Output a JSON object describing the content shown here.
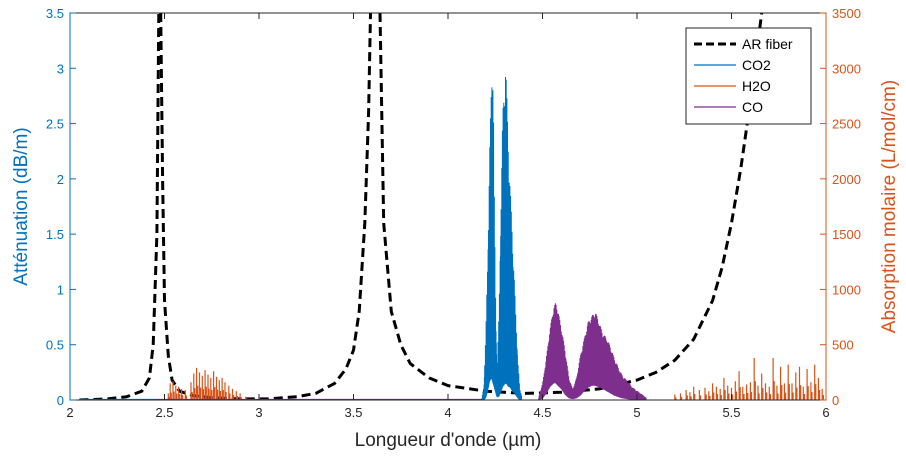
{
  "chart_data": {
    "type": "line",
    "xlabel": "Longueur d'onde (µm)",
    "ylabel_left": "Atténuation (dB/m)",
    "ylabel_right": "Absorption molaire (L/mol/cm)",
    "xlim": [
      2,
      6
    ],
    "ylim_left": [
      0,
      3.5
    ],
    "ylim_right": [
      0,
      3500
    ],
    "x_ticks": [
      2,
      2.5,
      3,
      3.5,
      4,
      4.5,
      5,
      5.5,
      6
    ],
    "x_tick_labels": [
      "2",
      "2.5",
      "3",
      "3.5",
      "4",
      "4.5",
      "5",
      "5.5",
      "6"
    ],
    "y_left_ticks": [
      0,
      0.5,
      1,
      1.5,
      2,
      2.5,
      3,
      3.5
    ],
    "y_left_tick_labels": [
      "0",
      "0.5",
      "1",
      "1.5",
      "2",
      "2.5",
      "3",
      "3.5"
    ],
    "y_right_ticks": [
      0,
      500,
      1000,
      1500,
      2000,
      2500,
      3000,
      3500
    ],
    "y_right_tick_labels": [
      "0",
      "500",
      "1000",
      "1500",
      "2000",
      "2500",
      "3000",
      "3500"
    ],
    "grid": false,
    "legend_position": "top-right",
    "colors": {
      "left_axis": "#0072BD",
      "right_axis": "#D95319",
      "ar_fiber": "#000000",
      "co2": "#0072BD",
      "h2o": "#D95319",
      "co": "#7E2F8E"
    },
    "series": [
      {
        "name": "AR fiber",
        "axis": "left",
        "style": "dashed",
        "segments": [
          {
            "x": [
              2.05,
              2.2,
              2.3,
              2.38,
              2.42,
              2.44,
              2.46,
              2.47
            ],
            "y": [
              0.0,
              0.01,
              0.03,
              0.08,
              0.2,
              0.5,
              1.5,
              3.5
            ]
          },
          {
            "x": [
              2.48,
              2.49,
              2.5,
              2.52,
              2.54,
              2.58,
              2.65,
              2.75,
              2.9,
              3.05,
              3.2,
              3.3,
              3.4,
              3.46,
              3.5,
              3.53,
              3.56,
              3.58,
              3.59
            ],
            "y": [
              3.5,
              2.0,
              0.9,
              0.4,
              0.18,
              0.08,
              0.04,
              0.02,
              0.01,
              0.01,
              0.03,
              0.06,
              0.15,
              0.28,
              0.45,
              0.8,
              1.6,
              2.6,
              3.5
            ]
          },
          {
            "x": [
              3.64,
              3.66,
              3.7,
              3.75,
              3.8,
              3.9,
              4.0,
              4.2,
              4.4,
              4.6,
              4.8,
              5.0,
              5.1,
              5.2,
              5.3,
              5.4,
              5.45,
              5.5,
              5.55,
              5.6,
              5.63,
              5.66
            ],
            "y": [
              3.5,
              1.6,
              0.8,
              0.5,
              0.33,
              0.2,
              0.13,
              0.08,
              0.06,
              0.07,
              0.1,
              0.18,
              0.25,
              0.36,
              0.55,
              0.9,
              1.2,
              1.6,
              2.1,
              2.7,
              3.1,
              3.5
            ]
          }
        ]
      },
      {
        "name": "CO2",
        "axis": "right",
        "style": "dense",
        "x": [
          4.18,
          4.19,
          4.2,
          4.21,
          4.22,
          4.23,
          4.235,
          4.24,
          4.245,
          4.25,
          4.255,
          4.26,
          4.27,
          4.28,
          4.29,
          4.3,
          4.305,
          4.31,
          4.32,
          4.33,
          4.34,
          4.35,
          4.36,
          4.37,
          4.38,
          4.39
        ],
        "peak": [
          30,
          120,
          600,
          1300,
          2200,
          2900,
          3200,
          2800,
          1800,
          1200,
          600,
          300,
          800,
          1800,
          2600,
          2950,
          3100,
          2800,
          2300,
          1900,
          1500,
          1150,
          700,
          350,
          100,
          40
        ],
        "base": [
          0,
          0,
          50,
          200,
          420,
          500,
          420,
          350,
          280,
          200,
          120,
          60,
          80,
          200,
          300,
          360,
          380,
          360,
          300,
          280,
          200,
          160,
          100,
          40,
          0,
          0
        ]
      },
      {
        "name": "H2O",
        "axis": "right",
        "style": "spikes",
        "x": [
          2.52,
          2.53,
          2.545,
          2.56,
          2.575,
          2.59,
          2.61,
          2.64,
          2.655,
          2.67,
          2.685,
          2.7,
          2.715,
          2.73,
          2.745,
          2.76,
          2.775,
          2.79,
          2.805,
          2.82,
          2.84,
          2.86,
          2.88,
          2.9,
          2.93,
          5.2,
          5.23,
          5.26,
          5.28,
          5.3,
          5.33,
          5.36,
          5.38,
          5.4,
          5.42,
          5.44,
          5.46,
          5.48,
          5.5,
          5.52,
          5.54,
          5.56,
          5.58,
          5.6,
          5.62,
          5.64,
          5.66,
          5.68,
          5.7,
          5.72,
          5.74,
          5.76,
          5.78,
          5.8,
          5.82,
          5.84,
          5.86,
          5.88,
          5.9,
          5.92,
          5.94,
          5.96,
          5.98
        ],
        "y": [
          60,
          150,
          170,
          130,
          120,
          100,
          90,
          160,
          240,
          290,
          250,
          220,
          270,
          230,
          200,
          260,
          210,
          180,
          200,
          160,
          130,
          100,
          80,
          60,
          30,
          50,
          60,
          90,
          70,
          120,
          90,
          110,
          80,
          150,
          120,
          100,
          200,
          130,
          110,
          170,
          260,
          120,
          140,
          160,
          380,
          130,
          240,
          150,
          120,
          380,
          130,
          300,
          150,
          320,
          150,
          250,
          300,
          120,
          280,
          160,
          320,
          200,
          100
        ]
      },
      {
        "name": "CO",
        "axis": "right",
        "style": "dense",
        "x": [
          4.48,
          4.5,
          4.52,
          4.54,
          4.56,
          4.57,
          4.58,
          4.6,
          4.62,
          4.64,
          4.66,
          4.68,
          4.7,
          4.72,
          4.74,
          4.76,
          4.78,
          4.8,
          4.82,
          4.84,
          4.86,
          4.88,
          4.9,
          4.92,
          4.95,
          4.98,
          5.02,
          5.05
        ],
        "peak": [
          30,
          150,
          380,
          650,
          850,
          880,
          830,
          650,
          450,
          200,
          100,
          200,
          400,
          550,
          700,
          760,
          800,
          700,
          600,
          560,
          480,
          380,
          300,
          230,
          170,
          110,
          60,
          20
        ],
        "base": [
          0,
          30,
          150,
          300,
          380,
          380,
          330,
          250,
          120,
          40,
          20,
          40,
          100,
          200,
          280,
          320,
          320,
          290,
          250,
          200,
          150,
          100,
          70,
          40,
          20,
          0,
          0,
          0
        ]
      }
    ]
  }
}
